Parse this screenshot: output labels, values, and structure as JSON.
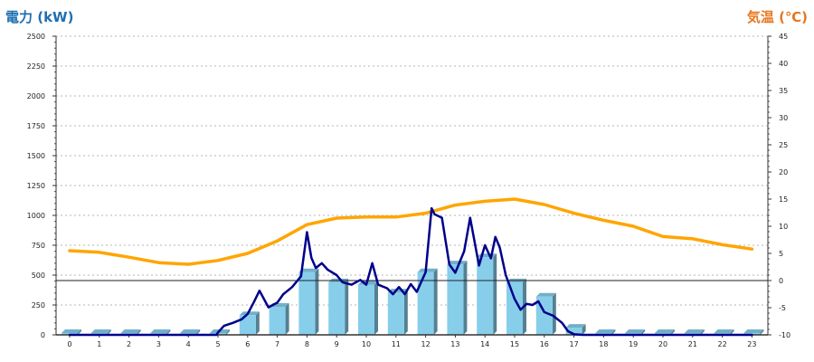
{
  "chart_data": {
    "type": "bar",
    "left_axis_title": "電力 (kW)",
    "right_axis_title": "気温 (℃)",
    "x_categories": [
      "0",
      "1",
      "2",
      "3",
      "4",
      "5",
      "6",
      "7",
      "8",
      "9",
      "10",
      "11",
      "12",
      "13",
      "14",
      "15",
      "16",
      "17",
      "18",
      "19",
      "20",
      "21",
      "22",
      "23"
    ],
    "left_ylim": [
      0,
      2500
    ],
    "left_ticks": [
      "0",
      "250",
      "500",
      "750",
      "1000",
      "1250",
      "1500",
      "1750",
      "2000",
      "2250",
      "2500"
    ],
    "right_ylim": [
      -10,
      45
    ],
    "right_ticks": [
      "-10",
      "-5",
      "0",
      "5",
      "10",
      "15",
      "20",
      "25",
      "30",
      "35",
      "40",
      "45"
    ],
    "grid": "horizontal dotted",
    "bar_color": "#87ceeb",
    "power_line_color": "#00008b",
    "temperature_line_color": "#ffa500",
    "left_title_color": "#1f6fb2",
    "right_title_color": "#e8761e",
    "series": [
      {
        "type": "bar",
        "axis": "left",
        "values": [
          15,
          15,
          15,
          15,
          15,
          15,
          165,
          235,
          525,
          440,
          420,
          355,
          525,
          590,
          650,
          440,
          320,
          60,
          15,
          15,
          15,
          15,
          15,
          15
        ]
      },
      {
        "type": "line",
        "axis": "left",
        "x": [
          0,
          1,
          2,
          3,
          4,
          4.95,
          5,
          5.2,
          5.5,
          5.8,
          6,
          6.2,
          6.4,
          6.7,
          7,
          7.2,
          7.5,
          7.8,
          8,
          8.15,
          8.3,
          8.5,
          8.7,
          9,
          9.2,
          9.5,
          9.8,
          10,
          10.2,
          10.4,
          10.7,
          10.9,
          11.1,
          11.3,
          11.5,
          11.7,
          12,
          12.2,
          12.3,
          12.55,
          12.8,
          13,
          13.3,
          13.5,
          13.8,
          14,
          14.2,
          14.35,
          14.5,
          14.7,
          15,
          15.2,
          15.4,
          15.6,
          15.8,
          16,
          16.3,
          16.6,
          16.8,
          17,
          17.3,
          18,
          19,
          20,
          21,
          22,
          23
        ],
        "y": [
          0,
          0,
          0,
          0,
          0,
          0,
          20,
          75,
          100,
          130,
          175,
          270,
          370,
          230,
          270,
          340,
          400,
          490,
          860,
          645,
          560,
          600,
          545,
          500,
          440,
          420,
          460,
          420,
          600,
          420,
          390,
          340,
          400,
          340,
          425,
          360,
          525,
          1060,
          1010,
          980,
          590,
          520,
          700,
          980,
          580,
          750,
          640,
          820,
          730,
          500,
          300,
          210,
          260,
          250,
          280,
          190,
          160,
          100,
          30,
          5,
          0,
          0,
          0,
          0,
          0,
          0,
          0
        ]
      },
      {
        "type": "line",
        "axis": "right",
        "x": [
          0,
          1,
          2,
          3,
          4,
          5,
          6,
          7,
          8,
          9,
          10,
          11,
          12,
          13,
          14,
          15,
          16,
          17,
          18,
          19,
          20,
          21,
          22,
          23
        ],
        "y": [
          5.5,
          5.2,
          4.3,
          3.3,
          3.0,
          3.7,
          5.0,
          7.3,
          10.3,
          11.5,
          11.7,
          11.7,
          12.4,
          13.9,
          14.6,
          15.0,
          14.0,
          12.4,
          11.1,
          10.0,
          8.1,
          7.7,
          6.6,
          5.8
        ]
      }
    ],
    "reference_line": {
      "axis": "right",
      "value": 0
    }
  }
}
